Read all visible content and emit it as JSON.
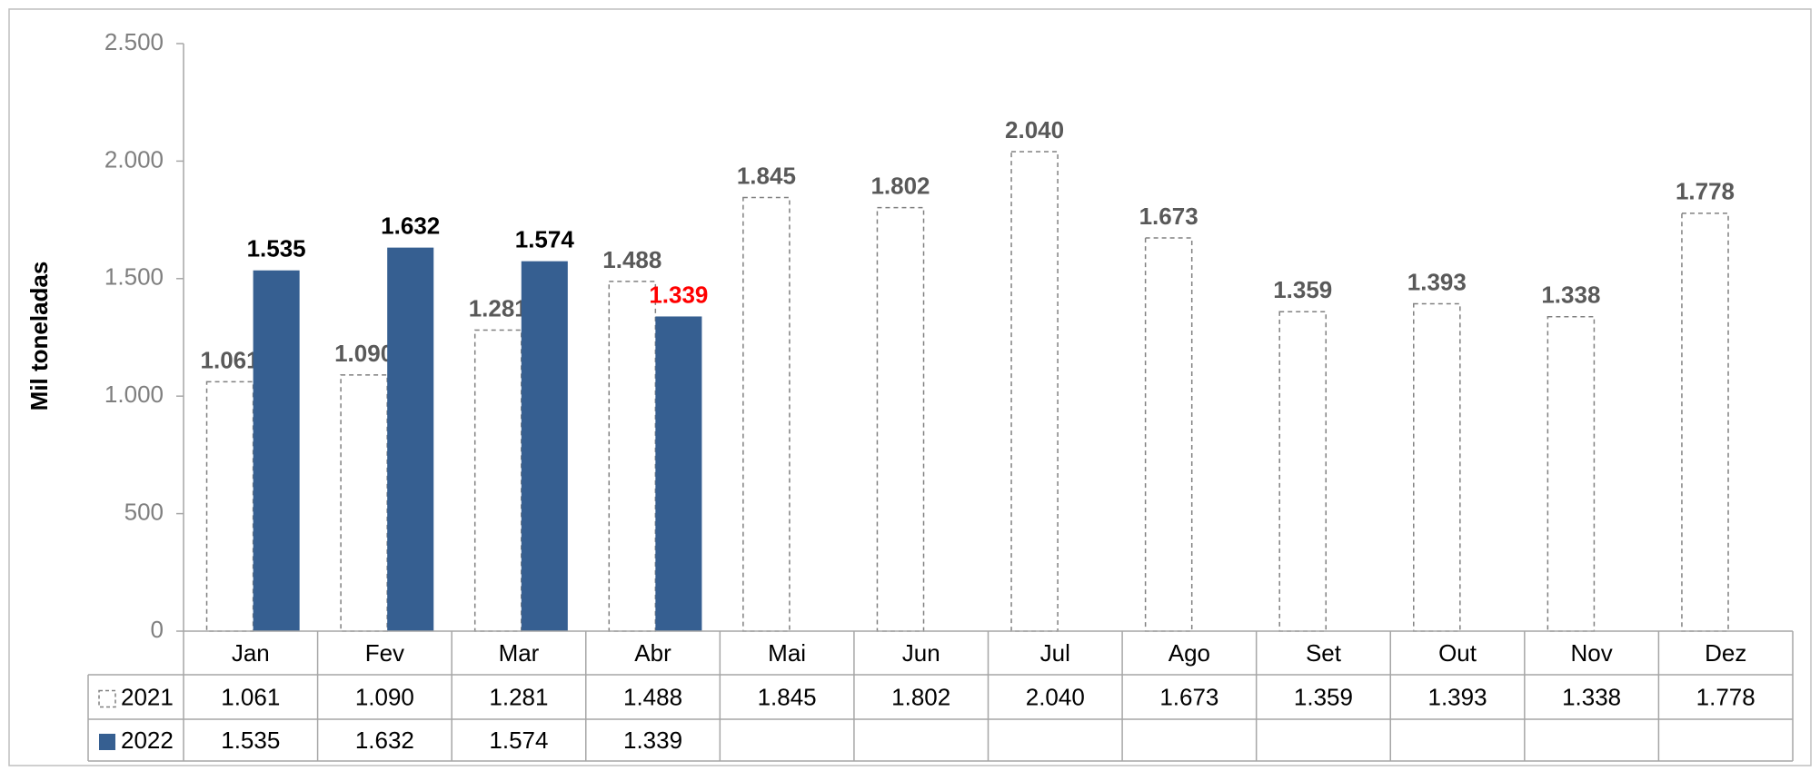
{
  "chart_data": {
    "type": "bar",
    "y_label": "Mil toneladas",
    "categories": [
      "Jan",
      "Fev",
      "Mar",
      "Abr",
      "Mai",
      "Jun",
      "Jul",
      "Ago",
      "Set",
      "Out",
      "Nov",
      "Dez"
    ],
    "series": [
      {
        "name": "2021",
        "color": "#ffffff",
        "stroke": "#808080",
        "label_color": "#595959",
        "values": [
          1061,
          1090,
          1281,
          1488,
          1845,
          1802,
          2040,
          1673,
          1359,
          1393,
          1338,
          1778
        ],
        "value_labels": [
          "1.061",
          "1.090",
          "1.281",
          "1.488",
          "1.845",
          "1.802",
          "2.040",
          "1.673",
          "1.359",
          "1.393",
          "1.338",
          "1.778"
        ]
      },
      {
        "name": "2022",
        "color": "#365f91",
        "label_colors": [
          "#000000",
          "#000000",
          "#000000",
          "#ff0000"
        ],
        "values": [
          1535,
          1632,
          1574,
          1339,
          null,
          null,
          null,
          null,
          null,
          null,
          null,
          null
        ],
        "value_labels": [
          "1.535",
          "1.632",
          "1.574",
          "1.339",
          null,
          null,
          null,
          null,
          null,
          null,
          null,
          null
        ]
      }
    ],
    "ylim": [
      0,
      2500
    ],
    "yticks": [
      0,
      500,
      {
        "value": 1000,
        "label": "1.000"
      },
      {
        "value": 1500,
        "label": "1.500"
      },
      {
        "value": 2000,
        "label": "2.000"
      },
      {
        "value": 2500,
        "label": "2.500"
      }
    ],
    "grid": false,
    "data_table": true
  }
}
